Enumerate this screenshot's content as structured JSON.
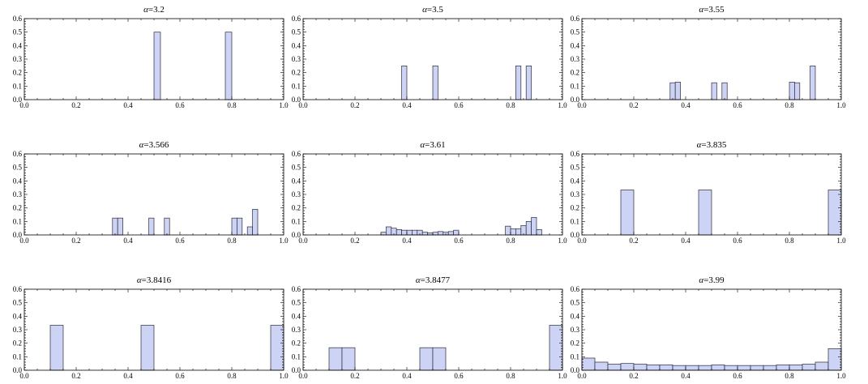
{
  "chart_data": [
    {
      "type": "bar",
      "title_prefix": "α",
      "title_value": "=3.2",
      "xlim": [
        0,
        1
      ],
      "ylim": [
        0,
        0.6
      ],
      "bin_width": 0.025,
      "x_ticks": [
        "0.0",
        "0.2",
        "0.4",
        "0.6",
        "0.8",
        "1.0"
      ],
      "y_ticks": [
        "0.0",
        "0.1",
        "0.2",
        "0.3",
        "0.4",
        "0.5",
        "0.6"
      ],
      "bars": [
        {
          "x": 0.5,
          "y": 0.5
        },
        {
          "x": 0.775,
          "y": 0.5
        }
      ]
    },
    {
      "type": "bar",
      "title_prefix": "α",
      "title_value": "=3.5",
      "xlim": [
        0,
        1
      ],
      "ylim": [
        0,
        0.6
      ],
      "bin_width": 0.02,
      "x_ticks": [
        "0.0",
        "0.2",
        "0.4",
        "0.6",
        "0.8",
        "1.0"
      ],
      "y_ticks": [
        "0.0",
        "0.1",
        "0.2",
        "0.3",
        "0.4",
        "0.5",
        "0.6"
      ],
      "bars": [
        {
          "x": 0.38,
          "y": 0.25
        },
        {
          "x": 0.5,
          "y": 0.25
        },
        {
          "x": 0.82,
          "y": 0.25
        },
        {
          "x": 0.86,
          "y": 0.25
        }
      ]
    },
    {
      "type": "bar",
      "title_prefix": "α",
      "title_value": "=3.55",
      "xlim": [
        0,
        1
      ],
      "ylim": [
        0,
        0.6
      ],
      "bin_width": 0.02,
      "x_ticks": [
        "0.0",
        "0.2",
        "0.4",
        "0.6",
        "0.8",
        "1.0"
      ],
      "y_ticks": [
        "0.0",
        "0.1",
        "0.2",
        "0.3",
        "0.4",
        "0.5",
        "0.6"
      ],
      "bars": [
        {
          "x": 0.34,
          "y": 0.125
        },
        {
          "x": 0.36,
          "y": 0.13
        },
        {
          "x": 0.5,
          "y": 0.125
        },
        {
          "x": 0.54,
          "y": 0.125
        },
        {
          "x": 0.8,
          "y": 0.13
        },
        {
          "x": 0.82,
          "y": 0.125
        },
        {
          "x": 0.88,
          "y": 0.25
        }
      ]
    },
    {
      "type": "bar",
      "title_prefix": "α",
      "title_value": "=3.566",
      "xlim": [
        0,
        1
      ],
      "ylim": [
        0,
        0.6
      ],
      "bin_width": 0.02,
      "x_ticks": [
        "0.0",
        "0.2",
        "0.4",
        "0.6",
        "0.8",
        "1.0"
      ],
      "y_ticks": [
        "0.0",
        "0.1",
        "0.2",
        "0.3",
        "0.4",
        "0.5",
        "0.6"
      ],
      "bars": [
        {
          "x": 0.34,
          "y": 0.125
        },
        {
          "x": 0.36,
          "y": 0.125
        },
        {
          "x": 0.48,
          "y": 0.125
        },
        {
          "x": 0.54,
          "y": 0.125
        },
        {
          "x": 0.8,
          "y": 0.125
        },
        {
          "x": 0.82,
          "y": 0.125
        },
        {
          "x": 0.86,
          "y": 0.06
        },
        {
          "x": 0.88,
          "y": 0.19
        }
      ]
    },
    {
      "type": "bar",
      "title_prefix": "α",
      "title_value": "=3.61",
      "xlim": [
        0,
        1
      ],
      "ylim": [
        0,
        0.6
      ],
      "bin_width": 0.02,
      "x_ticks": [
        "0.0",
        "0.2",
        "0.4",
        "0.6",
        "0.8",
        "1.0"
      ],
      "y_ticks": [
        "0.0",
        "0.1",
        "0.2",
        "0.3",
        "0.4",
        "0.5",
        "0.6"
      ],
      "bars": [
        {
          "x": 0.3,
          "y": 0.02
        },
        {
          "x": 0.32,
          "y": 0.06
        },
        {
          "x": 0.34,
          "y": 0.05
        },
        {
          "x": 0.36,
          "y": 0.04
        },
        {
          "x": 0.38,
          "y": 0.035
        },
        {
          "x": 0.4,
          "y": 0.035
        },
        {
          "x": 0.42,
          "y": 0.035
        },
        {
          "x": 0.44,
          "y": 0.035
        },
        {
          "x": 0.46,
          "y": 0.02
        },
        {
          "x": 0.48,
          "y": 0.015
        },
        {
          "x": 0.5,
          "y": 0.02
        },
        {
          "x": 0.52,
          "y": 0.025
        },
        {
          "x": 0.54,
          "y": 0.02
        },
        {
          "x": 0.56,
          "y": 0.025
        },
        {
          "x": 0.58,
          "y": 0.035
        },
        {
          "x": 0.78,
          "y": 0.065
        },
        {
          "x": 0.8,
          "y": 0.045
        },
        {
          "x": 0.82,
          "y": 0.045
        },
        {
          "x": 0.84,
          "y": 0.07
        },
        {
          "x": 0.86,
          "y": 0.1
        },
        {
          "x": 0.88,
          "y": 0.13
        },
        {
          "x": 0.9,
          "y": 0.04
        }
      ]
    },
    {
      "type": "bar",
      "title_prefix": "α",
      "title_value": "=3.835",
      "xlim": [
        0,
        1
      ],
      "ylim": [
        0,
        0.6
      ],
      "bin_width": 0.05,
      "x_ticks": [
        "0.0",
        "0.2",
        "0.4",
        "0.6",
        "0.8",
        "1.0"
      ],
      "y_ticks": [
        "0.0",
        "0.1",
        "0.2",
        "0.3",
        "0.4",
        "0.5",
        "0.6"
      ],
      "bars": [
        {
          "x": 0.15,
          "y": 0.333
        },
        {
          "x": 0.45,
          "y": 0.333
        },
        {
          "x": 0.95,
          "y": 0.333
        }
      ]
    },
    {
      "type": "bar",
      "title_prefix": "α",
      "title_value": "=3.8416",
      "xlim": [
        0,
        1
      ],
      "ylim": [
        0,
        0.6
      ],
      "bin_width": 0.05,
      "x_ticks": [
        "0.0",
        "0.2",
        "0.4",
        "0.6",
        "0.8",
        "1.0"
      ],
      "y_ticks": [
        "0.0",
        "0.1",
        "0.2",
        "0.3",
        "0.4",
        "0.5",
        "0.6"
      ],
      "bars": [
        {
          "x": 0.1,
          "y": 0.333
        },
        {
          "x": 0.45,
          "y": 0.333
        },
        {
          "x": 0.95,
          "y": 0.333
        }
      ]
    },
    {
      "type": "bar",
      "title_prefix": "α",
      "title_value": "=3.8477",
      "xlim": [
        0,
        1
      ],
      "ylim": [
        0,
        0.6
      ],
      "bin_width": 0.05,
      "x_ticks": [
        "0.0",
        "0.2",
        "0.4",
        "0.6",
        "0.8",
        "1.0"
      ],
      "y_ticks": [
        "0.0",
        "0.1",
        "0.2",
        "0.3",
        "0.4",
        "0.5",
        "0.6"
      ],
      "bars": [
        {
          "x": 0.1,
          "y": 0.167
        },
        {
          "x": 0.15,
          "y": 0.167
        },
        {
          "x": 0.45,
          "y": 0.167
        },
        {
          "x": 0.5,
          "y": 0.167
        },
        {
          "x": 0.95,
          "y": 0.333
        }
      ]
    },
    {
      "type": "bar",
      "title_prefix": "α",
      "title_value": "=3.99",
      "xlim": [
        0,
        1
      ],
      "ylim": [
        0,
        0.6
      ],
      "bin_width": 0.05,
      "x_ticks": [
        "0.0",
        "0.2",
        "0.4",
        "0.6",
        "0.8",
        "1.0"
      ],
      "y_ticks": [
        "0.0",
        "0.1",
        "0.2",
        "0.3",
        "0.4",
        "0.5",
        "0.6"
      ],
      "bars": [
        {
          "x": 0.0,
          "y": 0.09
        },
        {
          "x": 0.05,
          "y": 0.06
        },
        {
          "x": 0.1,
          "y": 0.045
        },
        {
          "x": 0.15,
          "y": 0.05
        },
        {
          "x": 0.2,
          "y": 0.045
        },
        {
          "x": 0.25,
          "y": 0.04
        },
        {
          "x": 0.3,
          "y": 0.04
        },
        {
          "x": 0.35,
          "y": 0.035
        },
        {
          "x": 0.4,
          "y": 0.035
        },
        {
          "x": 0.45,
          "y": 0.035
        },
        {
          "x": 0.5,
          "y": 0.04
        },
        {
          "x": 0.55,
          "y": 0.035
        },
        {
          "x": 0.6,
          "y": 0.035
        },
        {
          "x": 0.65,
          "y": 0.035
        },
        {
          "x": 0.7,
          "y": 0.035
        },
        {
          "x": 0.75,
          "y": 0.04
        },
        {
          "x": 0.8,
          "y": 0.04
        },
        {
          "x": 0.85,
          "y": 0.045
        },
        {
          "x": 0.9,
          "y": 0.06
        },
        {
          "x": 0.95,
          "y": 0.16
        }
      ]
    }
  ]
}
